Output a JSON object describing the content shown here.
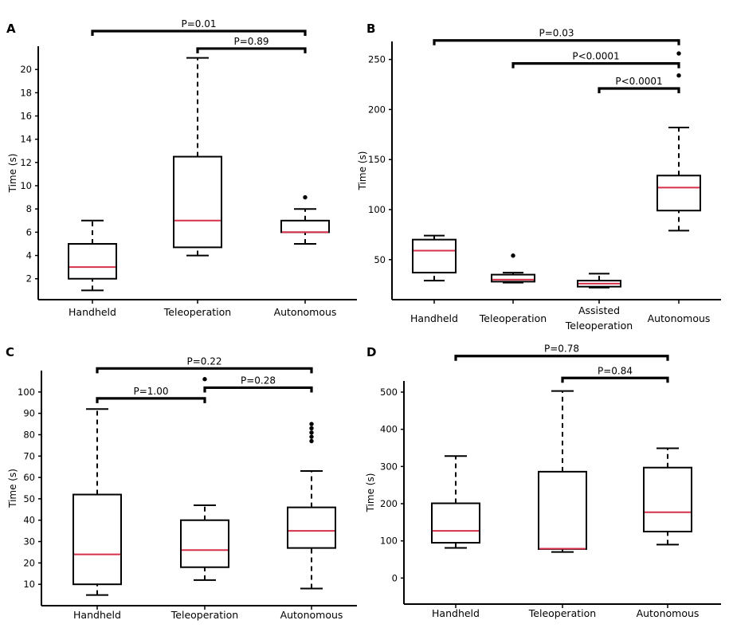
{
  "chart_data": [
    {
      "type": "box",
      "panel": "A",
      "ylabel": "Time (s)",
      "ylim": [
        0.2,
        22
      ],
      "yticks": [
        2,
        4,
        6,
        8,
        10,
        12,
        14,
        16,
        18,
        20
      ],
      "categories": [
        "Handheld",
        "Teleoperation",
        "Autonomous"
      ],
      "boxes": [
        {
          "name": "Handheld",
          "whisker_low": 1,
          "q1": 2,
          "median": 3,
          "q3": 5,
          "whisker_high": 7,
          "outliers": []
        },
        {
          "name": "Teleoperation",
          "whisker_low": 4,
          "q1": 4.7,
          "median": 7,
          "q3": 12.5,
          "whisker_high": 21,
          "outliers": []
        },
        {
          "name": "Autonomous",
          "whisker_low": 5,
          "q1": 6,
          "median": 6,
          "q3": 7,
          "whisker_high": 8,
          "outliers": [
            9
          ]
        }
      ],
      "comparisons": [
        {
          "from": "Handheld",
          "to": "Autonomous",
          "label": "P=0.01",
          "value": 23.3
        },
        {
          "from": "Teleoperation",
          "to": "Autonomous",
          "label": "P=0.89",
          "value": 21.8
        }
      ]
    },
    {
      "type": "box",
      "panel": "B",
      "ylabel": "Time (s)",
      "ylim": [
        10,
        268
      ],
      "yticks": [
        50,
        100,
        150,
        200,
        250
      ],
      "categories": [
        "Handheld",
        "Teleoperation",
        "Assisted\nTeleoperation",
        "Autonomous"
      ],
      "boxes": [
        {
          "name": "Handheld",
          "whisker_low": 29,
          "q1": 37,
          "median": 59,
          "q3": 70,
          "whisker_high": 74,
          "outliers": []
        },
        {
          "name": "Teleoperation",
          "whisker_low": 27,
          "q1": 28,
          "median": 30,
          "q3": 35,
          "whisker_high": 37,
          "outliers": [
            54
          ]
        },
        {
          "name": "Assisted Teleoperation",
          "whisker_low": 22,
          "q1": 23,
          "median": 26,
          "q3": 29,
          "whisker_high": 36,
          "outliers": []
        },
        {
          "name": "Autonomous",
          "whisker_low": 79,
          "q1": 99,
          "median": 122,
          "q3": 134,
          "whisker_high": 182,
          "outliers": [
            234,
            256
          ]
        }
      ],
      "comparisons": [
        {
          "from": "Handheld",
          "to": "Autonomous",
          "label": "P=0.03",
          "value": 269
        },
        {
          "from": "Teleoperation",
          "to": "Autonomous",
          "label": "P<0.0001",
          "value": 246
        },
        {
          "from": "Assisted\nTeleoperation",
          "to": "Autonomous",
          "label": "P<0.0001",
          "value": 221
        }
      ]
    },
    {
      "type": "box",
      "panel": "C",
      "ylabel": "Time (s)",
      "ylim": [
        0,
        110
      ],
      "yticks": [
        10,
        20,
        30,
        40,
        50,
        60,
        70,
        80,
        90,
        100
      ],
      "categories": [
        "Handheld",
        "Teleoperation",
        "Autonomous"
      ],
      "boxes": [
        {
          "name": "Handheld",
          "whisker_low": 5,
          "q1": 10,
          "median": 24,
          "q3": 52,
          "whisker_high": 92,
          "outliers": []
        },
        {
          "name": "Teleoperation",
          "whisker_low": 12,
          "q1": 18,
          "median": 26,
          "q3": 40,
          "whisker_high": 47,
          "outliers": [
            106
          ]
        },
        {
          "name": "Autonomous",
          "whisker_low": 8,
          "q1": 27,
          "median": 35,
          "q3": 46,
          "whisker_high": 63,
          "outliers": [
            77,
            79,
            81,
            83,
            85
          ]
        }
      ],
      "comparisons": [
        {
          "from": "Handheld",
          "to": "Autonomous",
          "label": "P=0.22",
          "value": 111
        },
        {
          "from": "Handheld",
          "to": "Teleoperation",
          "label": "P=1.00",
          "value": 97
        },
        {
          "from": "Teleoperation",
          "to": "Autonomous",
          "label": "P=0.28",
          "value": 102
        }
      ]
    },
    {
      "type": "box",
      "panel": "D",
      "ylabel": "Time (s)",
      "ylim": [
        -70,
        530
      ],
      "yticks": [
        0,
        100,
        200,
        300,
        400,
        500
      ],
      "categories": [
        "Handheld",
        "Teleoperation",
        "Autonomous"
      ],
      "boxes": [
        {
          "name": "Handheld",
          "whisker_low": 81,
          "q1": 95,
          "median": 127,
          "q3": 201,
          "whisker_high": 328,
          "outliers": []
        },
        {
          "name": "Teleoperation",
          "whisker_low": 70,
          "q1": 78,
          "median": 79,
          "q3": 286,
          "whisker_high": 503,
          "outliers": []
        },
        {
          "name": "Autonomous",
          "whisker_low": 90,
          "q1": 125,
          "median": 177,
          "q3": 297,
          "whisker_high": 349,
          "outliers": []
        }
      ],
      "comparisons": [
        {
          "from": "Handheld",
          "to": "Autonomous",
          "label": "P=0.78",
          "value": 597
        },
        {
          "from": "Teleoperation",
          "to": "Autonomous",
          "label": "P=0.84",
          "value": 538
        }
      ]
    }
  ],
  "colors": {
    "median": "#d6304a",
    "stroke": "#000000"
  }
}
